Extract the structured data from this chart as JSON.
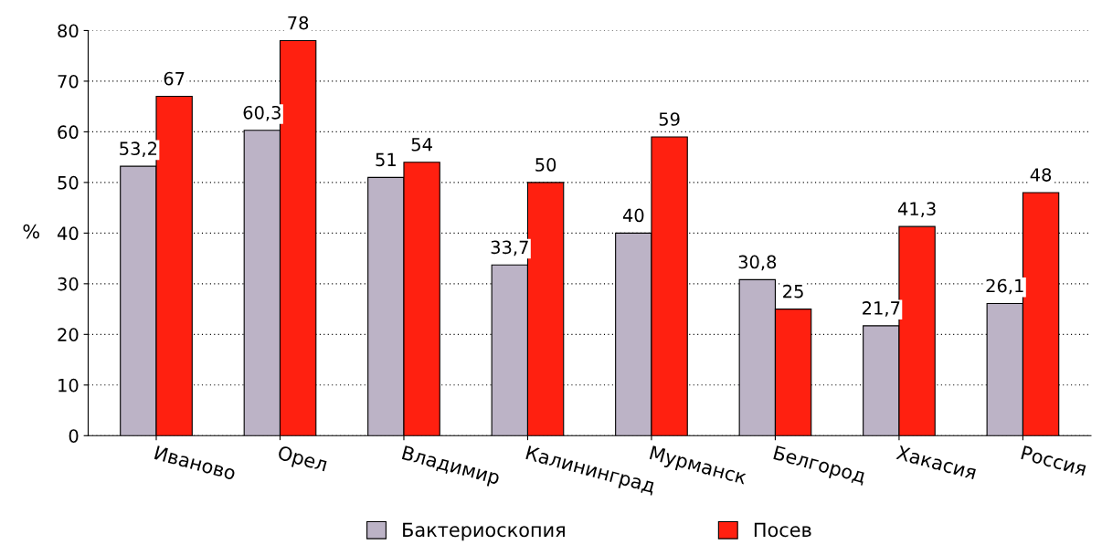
{
  "chart_data": {
    "type": "bar",
    "ylabel": "%",
    "categories": [
      "Иваново",
      "Орел",
      "Владимир",
      "Калининград",
      "Мурманск",
      "Белгород",
      "Хакасия",
      "Россия"
    ],
    "series": [
      {
        "name": "Бактериоскопия",
        "color": "#bcb3c6",
        "values": [
          53.2,
          60.3,
          51,
          33.7,
          40,
          30.8,
          21.7,
          26.1
        ],
        "value_labels": [
          "53,2",
          "60,3",
          "51",
          "33,7",
          "40",
          "30,8",
          "21,7",
          "26,1"
        ]
      },
      {
        "name": "Посев",
        "color": "#ff2010",
        "values": [
          67,
          78,
          54,
          50,
          59,
          25,
          41.3,
          48
        ],
        "value_labels": [
          "67",
          "78",
          "54",
          "50",
          "59",
          "25",
          "41,3",
          "48"
        ]
      }
    ],
    "ylim": [
      0,
      80
    ],
    "yticks": [
      0,
      10,
      20,
      30,
      40,
      50,
      60,
      70,
      80
    ],
    "grid": "y",
    "legend": "bottom"
  }
}
